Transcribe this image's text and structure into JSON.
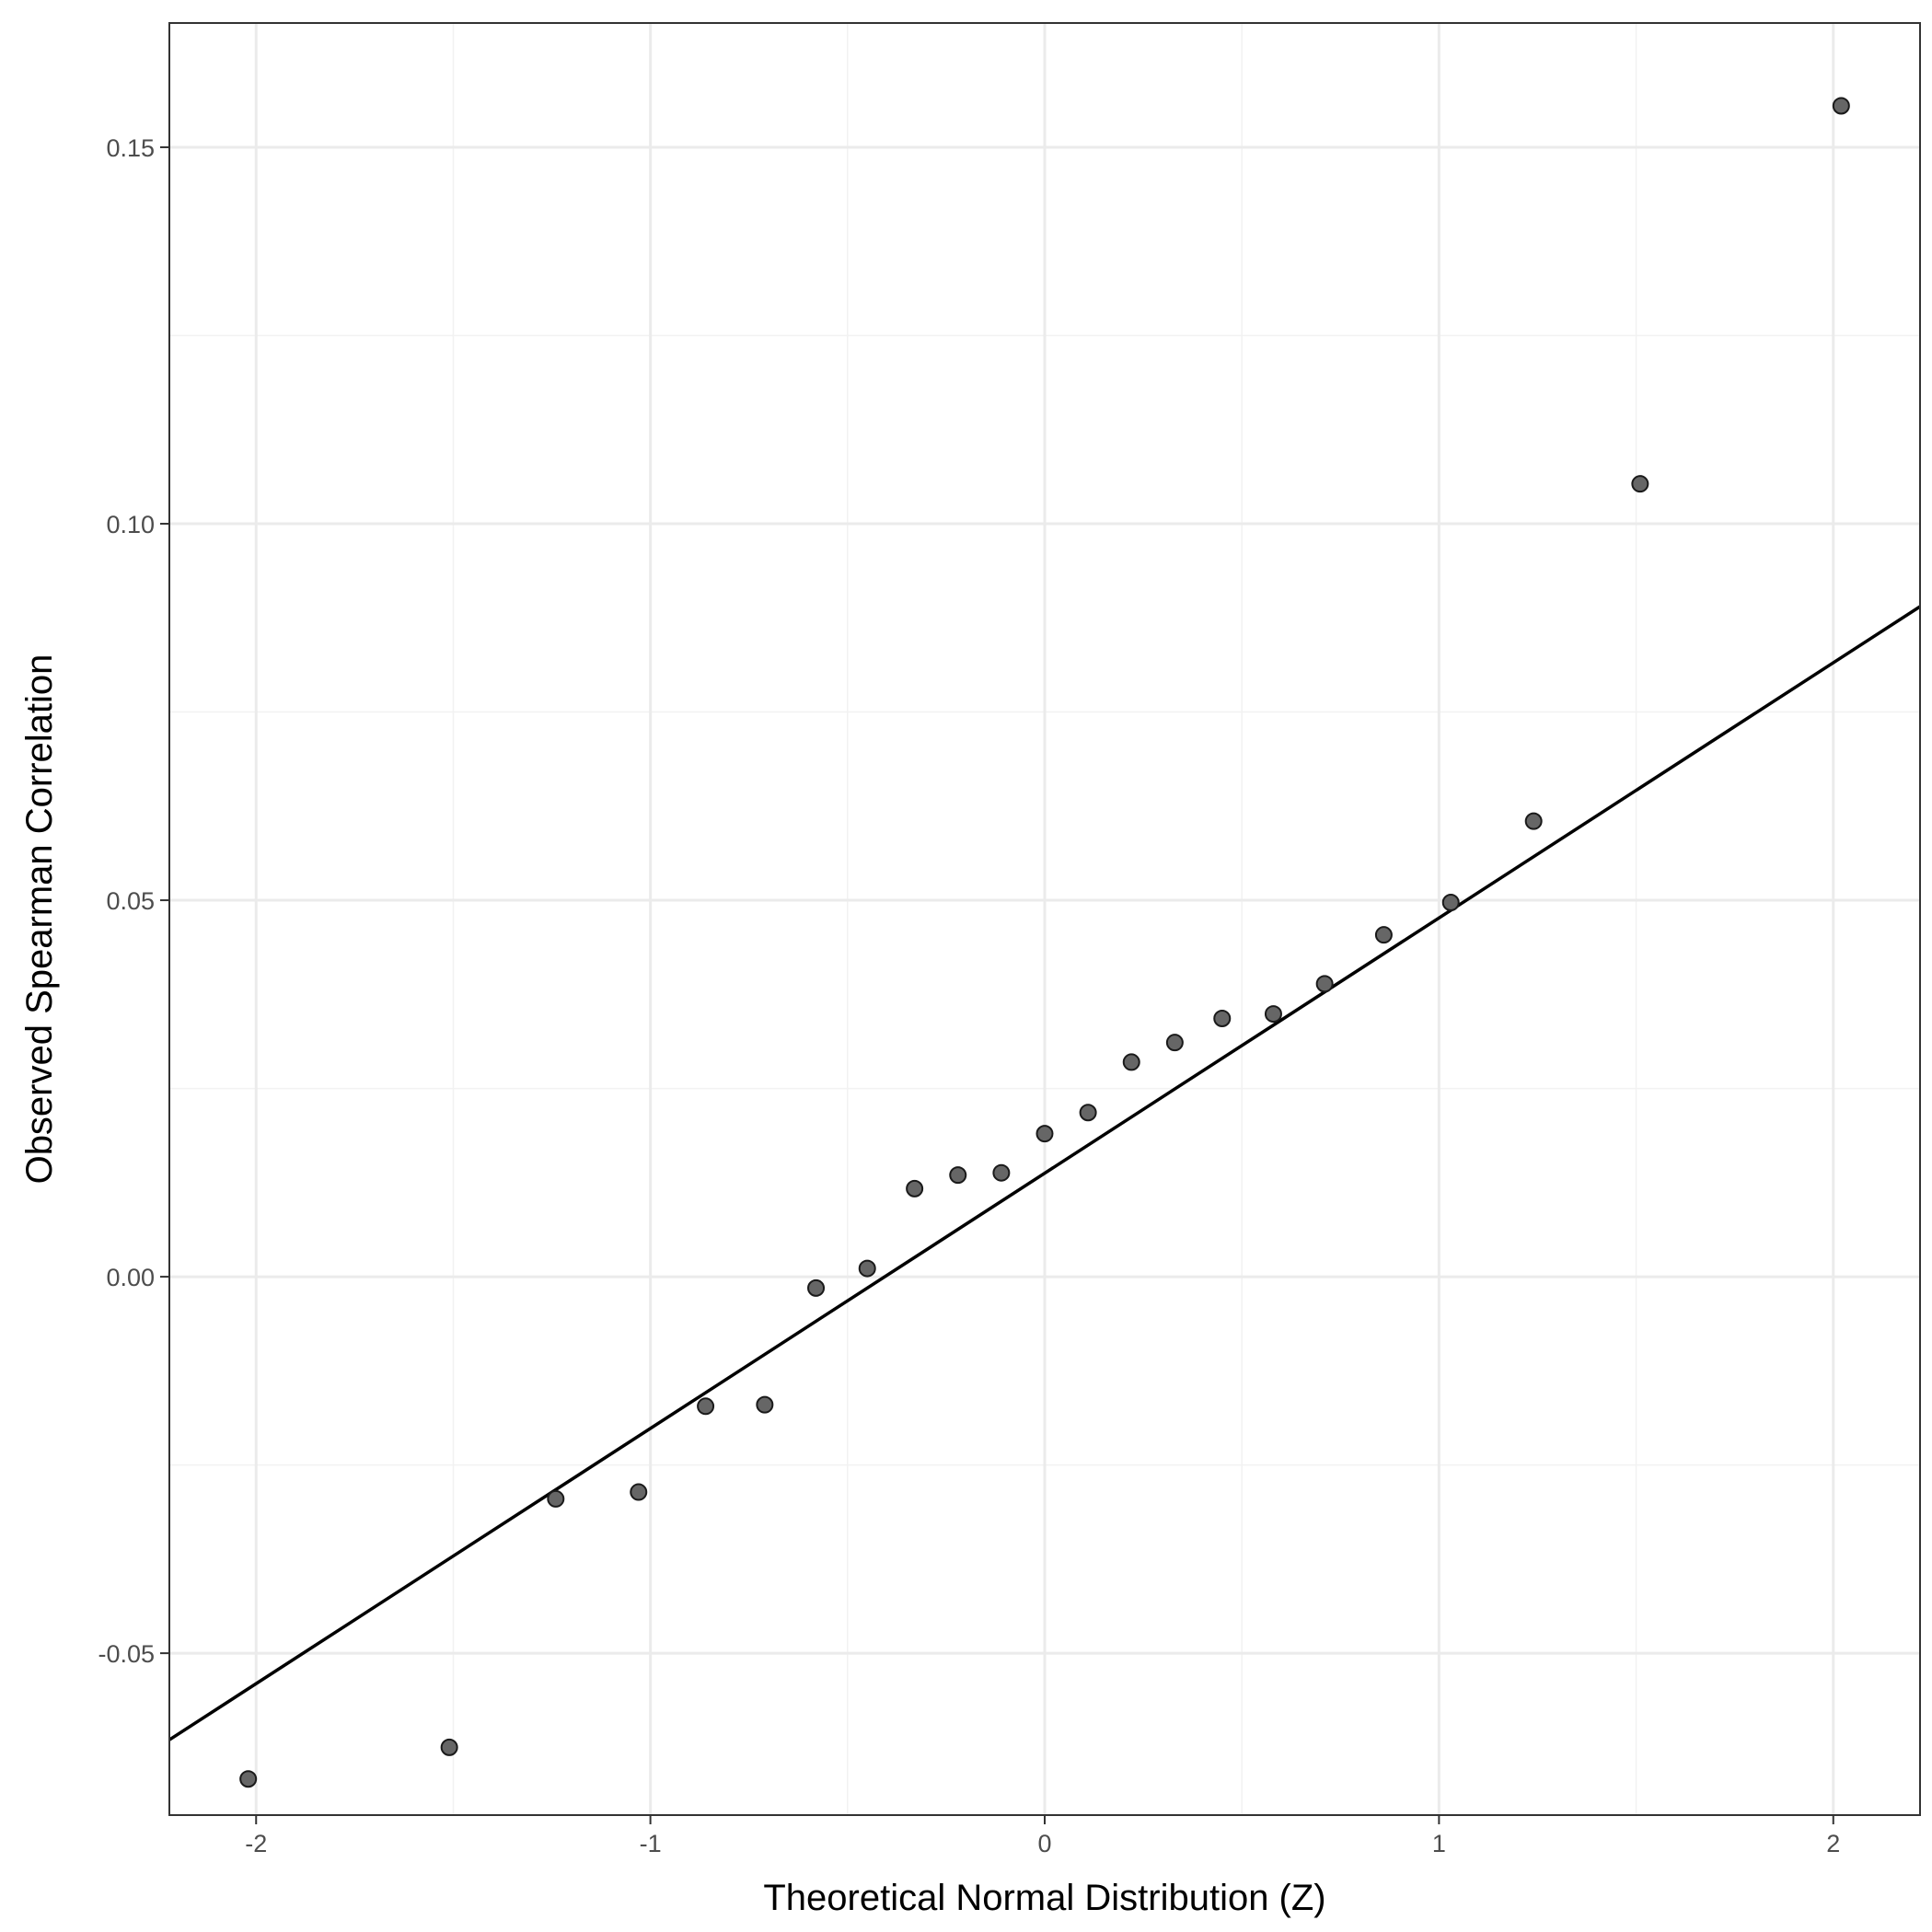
{
  "chart_data": {
    "type": "scatter",
    "title": "",
    "xlabel": "Theoretical Normal Distribution (Z)",
    "ylabel": "Observed Spearman Correlation",
    "xlim": [
      -2.22,
      2.22
    ],
    "ylim": [
      -0.0715,
      0.1665
    ],
    "x_ticks": [
      -2,
      -1,
      0,
      1,
      2
    ],
    "x_tick_labels": [
      "-2",
      "-1",
      "0",
      "1",
      "2"
    ],
    "y_ticks": [
      -0.05,
      0.0,
      0.05,
      0.1,
      0.15
    ],
    "y_tick_labels": [
      "-0.05",
      "0.00",
      "0.05",
      "0.10",
      "0.15"
    ],
    "grid": true,
    "legend": "none",
    "point_color": "#666666",
    "point_outline": "#1a1a1a",
    "line_color": "#000000",
    "points": {
      "x": [
        -2.02,
        -1.51,
        -1.24,
        -1.03,
        -0.86,
        -0.71,
        -0.58,
        -0.45,
        -0.33,
        -0.22,
        -0.11,
        0.0,
        0.11,
        0.22,
        0.33,
        0.45,
        0.58,
        0.71,
        0.86,
        1.03,
        1.24,
        1.51,
        2.02
      ],
      "y": [
        -0.0667,
        -0.0625,
        -0.0295,
        -0.0286,
        -0.0172,
        -0.017,
        -0.0015,
        0.0011,
        0.0117,
        0.0135,
        0.0138,
        0.019,
        0.0218,
        0.0285,
        0.0311,
        0.0343,
        0.0349,
        0.0389,
        0.0454,
        0.0497,
        0.0605,
        0.1053,
        0.1555
      ]
    },
    "reference_line": {
      "x": [
        -2.22,
        2.22
      ],
      "y": [
        -0.0615,
        0.089
      ]
    }
  }
}
